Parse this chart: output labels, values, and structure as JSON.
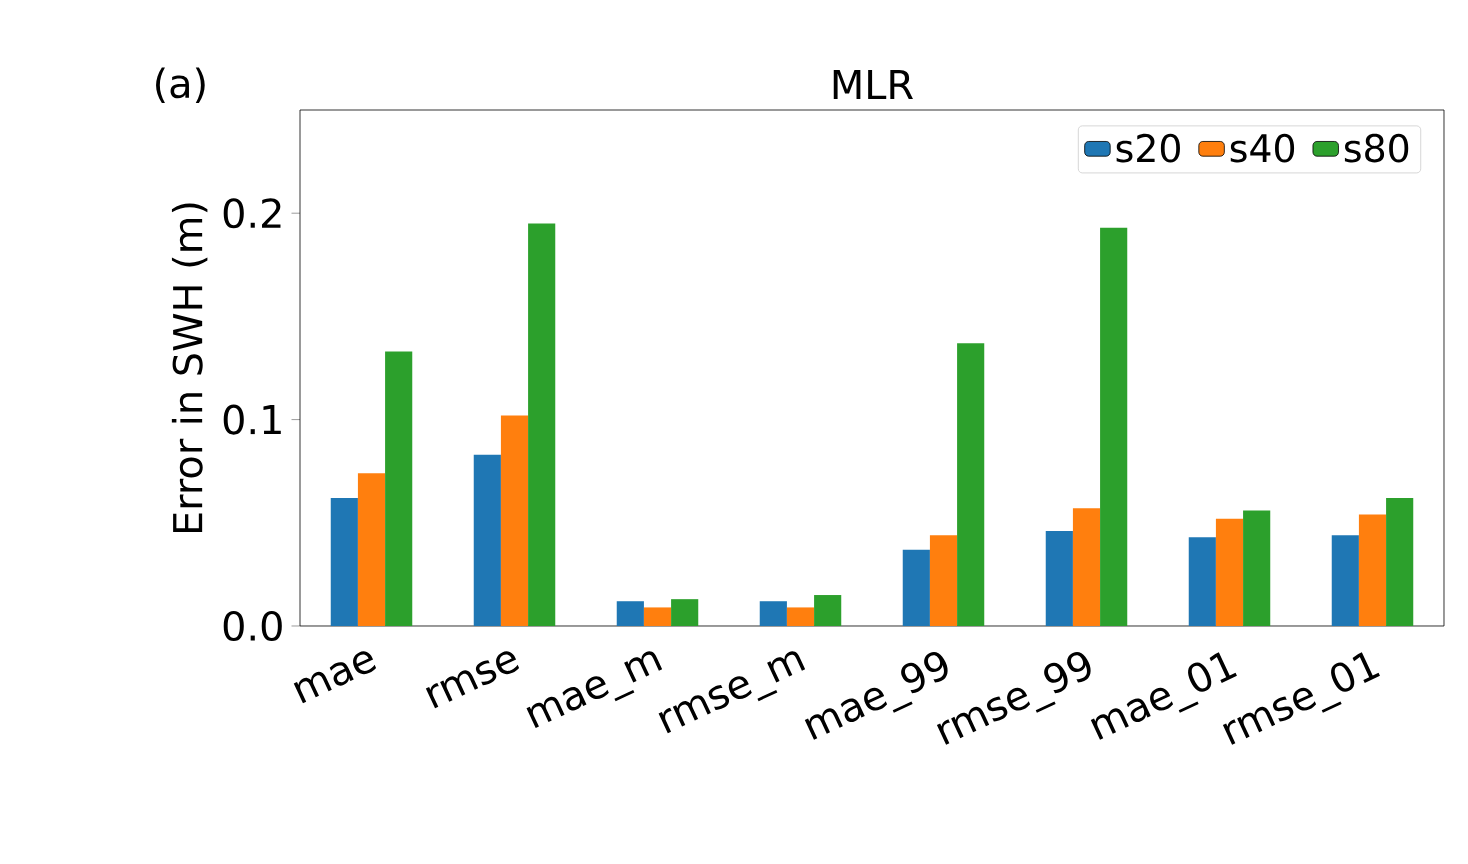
{
  "chart_data": {
    "type": "bar",
    "title": "MLR",
    "ylabel": "Error in SWH (m)",
    "annotations": [
      "(a)"
    ],
    "categories": [
      "mae",
      "rmse",
      "mae_m",
      "rmse_m",
      "mae_99",
      "rmse_99",
      "mae_01",
      "rmse_01"
    ],
    "series": [
      {
        "name": "s20",
        "color": "#1f77b4",
        "values": [
          0.062,
          0.083,
          0.012,
          0.012,
          0.037,
          0.046,
          0.043,
          0.044
        ]
      },
      {
        "name": "s40",
        "color": "#ff7f0e",
        "values": [
          0.074,
          0.102,
          0.009,
          0.009,
          0.044,
          0.057,
          0.052,
          0.054
        ]
      },
      {
        "name": "s80",
        "color": "#2ca02c",
        "values": [
          0.133,
          0.195,
          0.013,
          0.015,
          0.137,
          0.193,
          0.056,
          0.062
        ]
      }
    ],
    "ylim": [
      0,
      0.25
    ],
    "yticks": [
      {
        "value": 0,
        "label": "0.0"
      },
      {
        "value": 0.1,
        "label": "0.1"
      },
      {
        "value": 0.2,
        "label": "0.2"
      }
    ],
    "grid": false,
    "legend": "top right"
  }
}
